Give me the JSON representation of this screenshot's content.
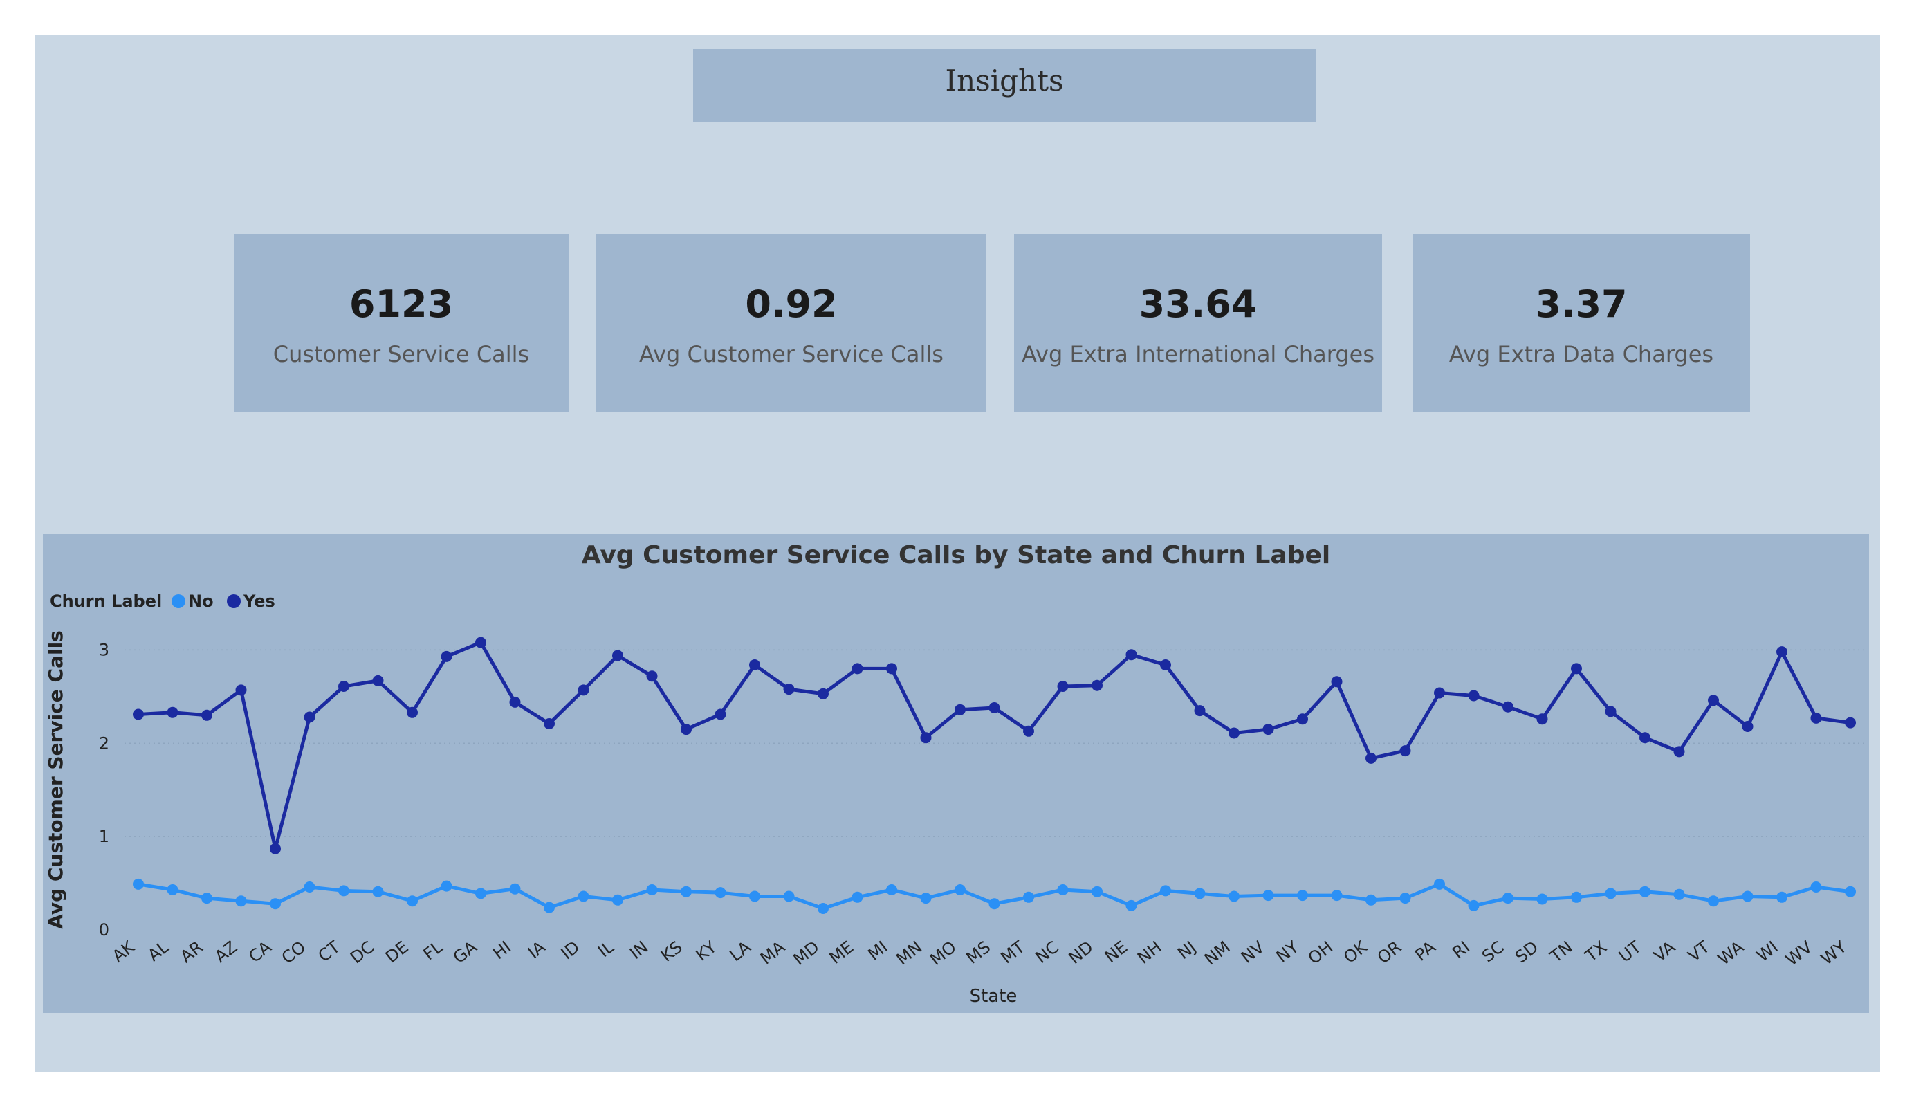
{
  "header": {
    "title": "Insights"
  },
  "cards": [
    {
      "value": "6123",
      "label": "Customer Service Calls"
    },
    {
      "value": "0.92",
      "label": "Avg Customer Service Calls"
    },
    {
      "value": "33.64",
      "label": "Avg Extra International Charges"
    },
    {
      "value": "3.37",
      "label": "Avg Extra Data Charges"
    }
  ],
  "colors": {
    "no": "#2b90f5",
    "yes": "#1b2aa0",
    "panel": "#9fb6cf",
    "canvas": "#c9d7e4"
  },
  "chart_data": {
    "type": "line",
    "title": "Avg Customer Service Calls by State and Churn Label",
    "xlabel": "State",
    "ylabel": "Avg Customer Service Calls",
    "legend_title": "Churn Label",
    "legend_position": "top-left",
    "ylim": [
      0,
      3.5
    ],
    "yticks": [
      0,
      1,
      2,
      3
    ],
    "grid": true,
    "categories": [
      "AK",
      "AL",
      "AR",
      "AZ",
      "CA",
      "CO",
      "CT",
      "DC",
      "DE",
      "FL",
      "GA",
      "HI",
      "IA",
      "ID",
      "IL",
      "IN",
      "KS",
      "KY",
      "LA",
      "MA",
      "MD",
      "ME",
      "MI",
      "MN",
      "MO",
      "MS",
      "MT",
      "NC",
      "ND",
      "NE",
      "NH",
      "NJ",
      "NM",
      "NV",
      "NY",
      "OH",
      "OK",
      "OR",
      "PA",
      "RI",
      "SC",
      "SD",
      "TN",
      "TX",
      "UT",
      "VA",
      "VT",
      "WA",
      "WI",
      "WV",
      "WY"
    ],
    "series": [
      {
        "name": "No",
        "values": [
          0.49,
          0.43,
          0.34,
          0.31,
          0.28,
          0.46,
          0.42,
          0.41,
          0.31,
          0.47,
          0.39,
          0.44,
          0.24,
          0.36,
          0.32,
          0.43,
          0.41,
          0.4,
          0.36,
          0.36,
          0.23,
          0.35,
          0.43,
          0.34,
          0.43,
          0.28,
          0.35,
          0.43,
          0.41,
          0.26,
          0.42,
          0.39,
          0.36,
          0.37,
          0.37,
          0.37,
          0.32,
          0.34,
          0.49,
          0.26,
          0.34,
          0.33,
          0.35,
          0.39,
          0.41,
          0.38,
          0.31,
          0.36,
          0.35,
          0.46,
          0.41
        ]
      },
      {
        "name": "Yes",
        "values": [
          2.31,
          2.33,
          2.3,
          2.57,
          0.87,
          2.28,
          2.61,
          2.67,
          2.33,
          2.93,
          3.08,
          2.44,
          2.21,
          2.57,
          2.94,
          2.72,
          2.15,
          2.31,
          2.84,
          2.58,
          2.53,
          2.8,
          2.8,
          2.06,
          2.36,
          2.38,
          2.13,
          2.61,
          2.62,
          2.95,
          2.84,
          2.35,
          2.11,
          2.15,
          2.26,
          2.66,
          1.84,
          1.92,
          2.54,
          2.51,
          2.39,
          2.26,
          2.8,
          2.34,
          2.06,
          1.91,
          2.46,
          2.18,
          2.98,
          2.27,
          2.22
        ]
      }
    ]
  }
}
